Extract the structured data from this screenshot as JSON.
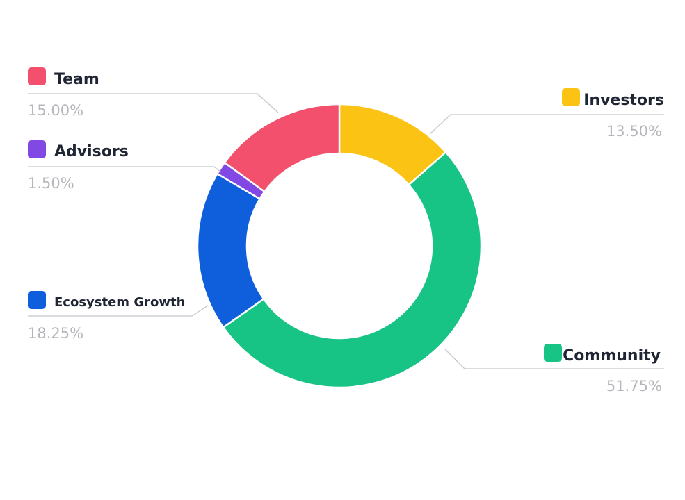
{
  "chart_data": {
    "type": "pie",
    "variant": "donut",
    "slices": [
      {
        "label": "Investors",
        "value": 13.5,
        "value_label": "13.50%",
        "color": "#fbc414"
      },
      {
        "label": "Community",
        "value": 51.75,
        "value_label": "51.75%",
        "color": "#18c386"
      },
      {
        "label": "Ecosystem Growth",
        "value": 18.25,
        "value_label": "18.25%",
        "color": "#0f5fdc"
      },
      {
        "label": "Advisors",
        "value": 1.5,
        "value_label": "1.50%",
        "color": "#8248e4"
      },
      {
        "label": "Team",
        "value": 15.0,
        "value_label": "15.00%",
        "color": "#f2506d"
      }
    ]
  }
}
